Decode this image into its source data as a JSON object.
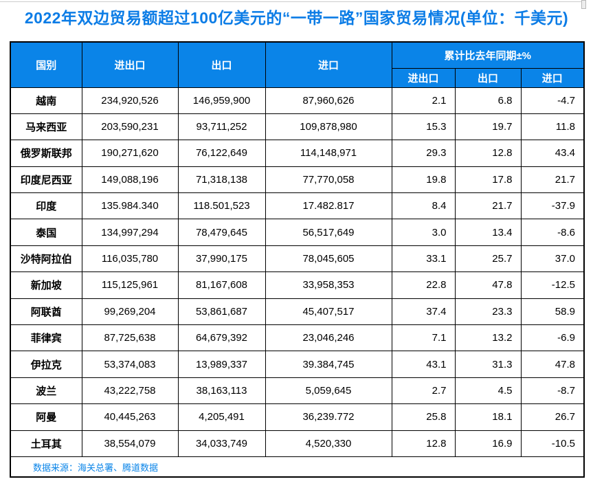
{
  "page": {
    "title": "2022年双边贸易额超过100亿美元的“一带一路”国家贸易情况(单位：千美元)",
    "footer": "数据来源：海关总署、腾道数据",
    "colors": {
      "title_blue": "#0b7ce6",
      "header_fill_blue": "#0a84e8",
      "header_text": "#ffffff",
      "source_note_blue": "#0a84e8",
      "border": "#000000",
      "background": "#ffffff"
    }
  },
  "table": {
    "headers": {
      "country": "国别",
      "import_export": "进出口",
      "export": "出口",
      "import": "进口",
      "yoy_group": "累计比去年同期±%",
      "yoy_import_export": "进出口",
      "yoy_export": "出口",
      "yoy_import": "进口"
    }
  },
  "chart_data": {
    "type": "table",
    "title": "2022年双边贸易额超过100亿美元的“一带一路”国家贸易情况",
    "unit": "千美元",
    "source": "海关总署、腾道数据",
    "columns": [
      "国别",
      "进出口",
      "出口",
      "进口",
      "累计比去年同期±% 进出口",
      "累计比去年同期±% 出口",
      "累计比去年同期±% 进口"
    ],
    "rows": [
      [
        "越南",
        "234,920,526",
        "146,959,900",
        "87,960,626",
        "2.1",
        "6.8",
        "-4.7"
      ],
      [
        "马来西亚",
        "203,590,231",
        "93,711,252",
        "109,878,980",
        "15.3",
        "19.7",
        "11.8"
      ],
      [
        "俄罗斯联邦",
        "190,271,620",
        "76,122,649",
        "114,148,971",
        "29.3",
        "12.8",
        "43.4"
      ],
      [
        "印度尼西亚",
        "149,088,196",
        "71,318,138",
        "77,770,058",
        "19.8",
        "17.8",
        "21.7"
      ],
      [
        "印度",
        "135.984.340",
        "118.501,523",
        "17.482.817",
        "8.4",
        "21.7",
        "-37.9"
      ],
      [
        "泰国",
        "134,997,294",
        "78,479,645",
        "56,517,649",
        "3.0",
        "13.4",
        "-8.6"
      ],
      [
        "沙特阿拉伯",
        "116,035,780",
        "37,990,175",
        "78,045,605",
        "33.1",
        "25.7",
        "37.0"
      ],
      [
        "新加坡",
        "115,125,961",
        "81,167,608",
        "33,958,353",
        "22.8",
        "47.8",
        "-12.5"
      ],
      [
        "阿联酋",
        "99,269,204",
        "53,861,687",
        "45,407,517",
        "37.4",
        "23.3",
        "58.9"
      ],
      [
        "菲律宾",
        "87,725,638",
        "64,679,392",
        "23,046,246",
        "7.1",
        "13.2",
        "-6.9"
      ],
      [
        "伊拉克",
        "53,374,083",
        "13,989,337",
        "39.384,745",
        "43.1",
        "31.3",
        "47.8"
      ],
      [
        "波兰",
        "43,222,758",
        "38,163,113",
        "5,059,645",
        "2.7",
        "4.5",
        "-8.7"
      ],
      [
        "阿曼",
        "40,445,263",
        "4,205,491",
        "36,239.772",
        "25.8",
        "18.1",
        "26.7"
      ],
      [
        "土耳其",
        "38,554,079",
        "34,033,749",
        "4,520,330",
        "12.8",
        "16.9",
        "-10.5"
      ]
    ]
  }
}
